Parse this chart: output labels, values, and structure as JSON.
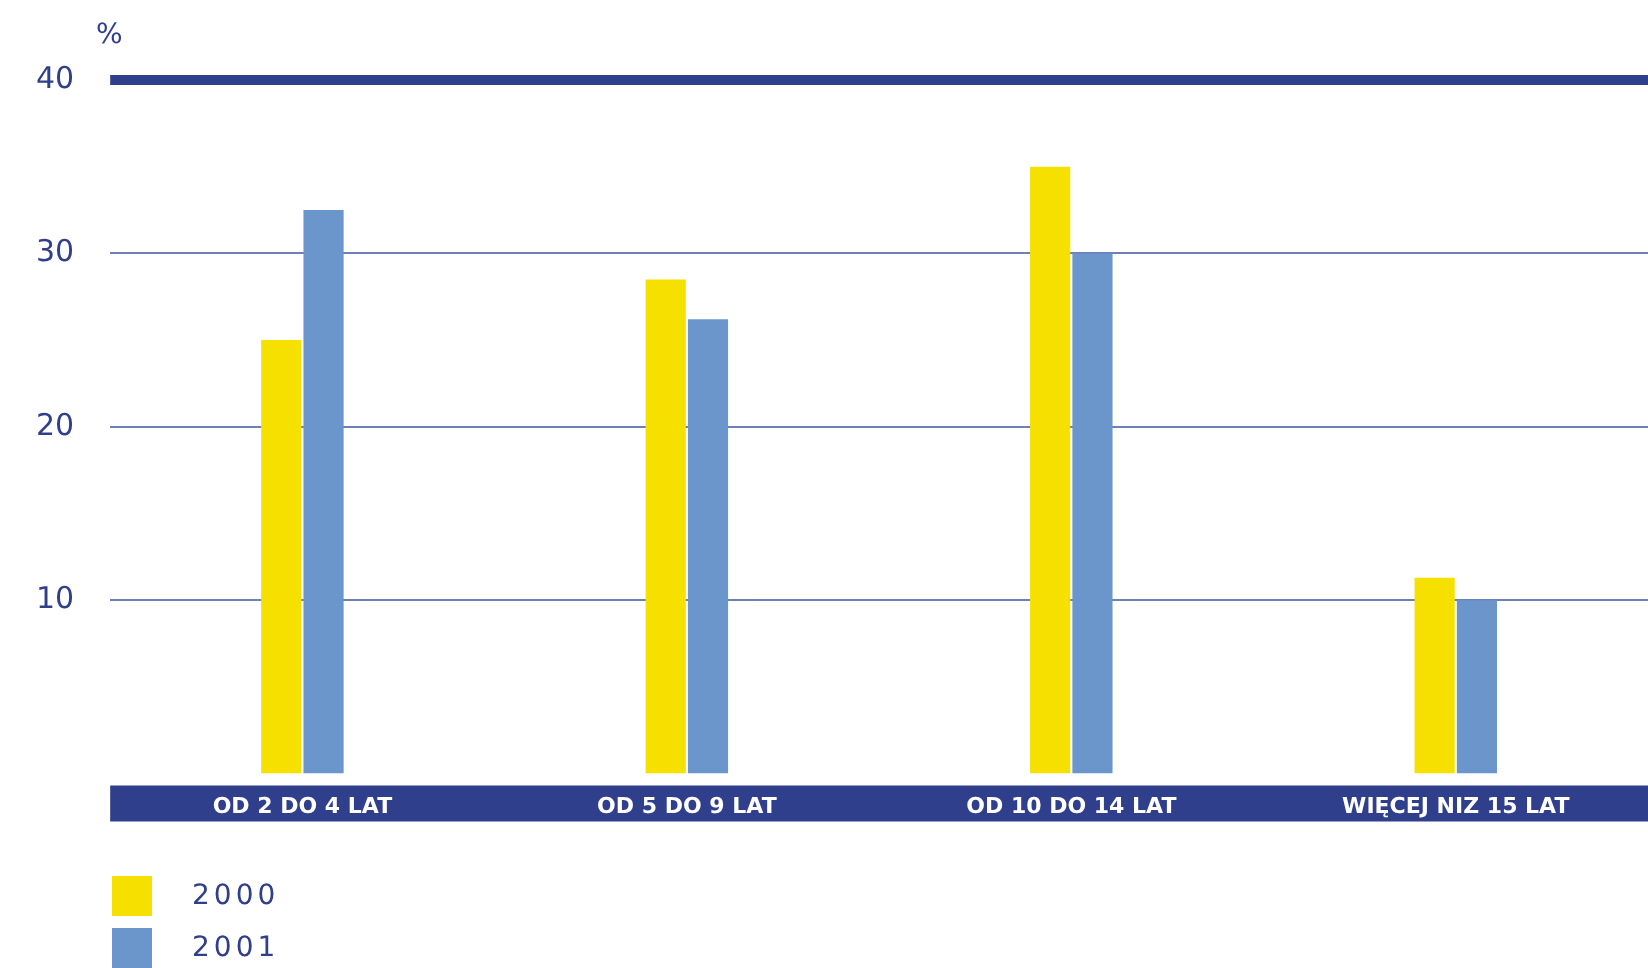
{
  "chart_data": {
    "type": "bar",
    "ylabel": "%",
    "categories": [
      "OD 2 DO 4 LAT",
      "OD 5 DO 9 LAT",
      "OD 10 DO 14 LAT",
      "WIĘCEJ NIZ 15 LAT"
    ],
    "series": [
      {
        "name": "2000",
        "color": "#f5e000",
        "values": [
          25,
          28.5,
          35,
          11.3
        ]
      },
      {
        "name": "2001",
        "color": "#6a96cc",
        "values": [
          32.5,
          26.2,
          30,
          10
        ]
      }
    ],
    "ylim": [
      0,
      40
    ],
    "yticks": [
      10,
      20,
      30,
      40
    ],
    "grid": "y",
    "legend": "bottom left",
    "ref_lines": [
      {
        "axis": "y",
        "value": 40,
        "color": "#2f3f8c"
      }
    ]
  }
}
